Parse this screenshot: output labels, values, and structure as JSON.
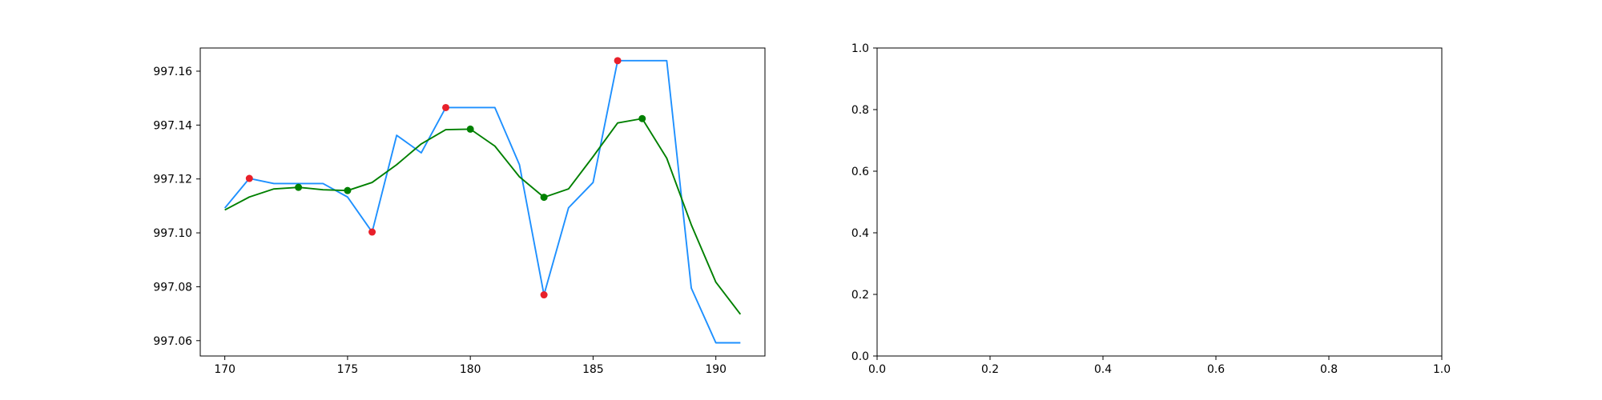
{
  "chart_data": [
    {
      "type": "line",
      "title": "",
      "xlabel": "",
      "ylabel": "",
      "xlim": [
        169.0,
        192.0
      ],
      "ylim": [
        997.0543,
        997.1686
      ],
      "xticks": [
        170,
        175,
        180,
        185,
        190
      ],
      "yticks": [
        997.06,
        997.08,
        997.1,
        997.12,
        997.14,
        997.16
      ],
      "xtick_labels": [
        "170",
        "175",
        "180",
        "185",
        "190"
      ],
      "ytick_labels": [
        "997.06",
        "997.08",
        "997.10",
        "997.12",
        "997.14",
        "997.16"
      ],
      "grid": false,
      "series": [
        {
          "color": "#1E90FF",
          "x": [
            170,
            171,
            172,
            173,
            174,
            175,
            176,
            177,
            178,
            179,
            180,
            181,
            182,
            183,
            184,
            185,
            186,
            187,
            188,
            189,
            190,
            191
          ],
          "y": [
            997.1092,
            997.1202,
            997.1183,
            997.1183,
            997.1183,
            997.1133,
            997.1003,
            997.1362,
            997.1297,
            997.1465,
            997.1465,
            997.1465,
            997.1253,
            997.077,
            997.1093,
            997.1187,
            997.1639,
            997.1639,
            997.1639,
            997.0795,
            997.0592,
            997.0592
          ]
        },
        {
          "color": "#008000",
          "x": [
            170,
            171,
            172,
            173,
            174,
            175,
            176,
            177,
            178,
            179,
            180,
            181,
            182,
            183,
            184,
            185,
            186,
            187,
            188,
            189,
            190,
            191
          ],
          "y": [
            997.1085,
            997.1133,
            997.1163,
            997.1169,
            997.116,
            997.1157,
            997.1187,
            997.1253,
            997.133,
            997.1383,
            997.1385,
            997.1322,
            997.1208,
            997.1132,
            997.1163,
            997.1283,
            997.1408,
            997.1424,
            997.1277,
            997.103,
            997.0817,
            997.0698
          ]
        }
      ],
      "markers": [
        {
          "color": "#E8202A",
          "x": [
            171,
            176,
            179,
            183,
            186
          ],
          "y": [
            997.1202,
            997.1003,
            997.1465,
            997.077,
            997.1639
          ]
        },
        {
          "color": "#008000",
          "x": [
            173,
            175,
            180,
            183,
            187
          ],
          "y": [
            997.1169,
            997.1157,
            997.1385,
            997.1132,
            997.1424
          ]
        }
      ]
    },
    {
      "type": "line",
      "title": "",
      "xlabel": "",
      "ylabel": "",
      "xlim": [
        0.0,
        1.0
      ],
      "ylim": [
        0.0,
        1.0
      ],
      "xticks": [
        0.0,
        0.2,
        0.4,
        0.6,
        0.8,
        1.0
      ],
      "yticks": [
        0.0,
        0.2,
        0.4,
        0.6,
        0.8,
        1.0
      ],
      "xtick_labels": [
        "0.0",
        "0.2",
        "0.4",
        "0.6",
        "0.8",
        "1.0"
      ],
      "ytick_labels": [
        "0.0",
        "0.2",
        "0.4",
        "0.6",
        "0.8",
        "1.0"
      ],
      "grid": false,
      "series": [],
      "markers": []
    }
  ]
}
